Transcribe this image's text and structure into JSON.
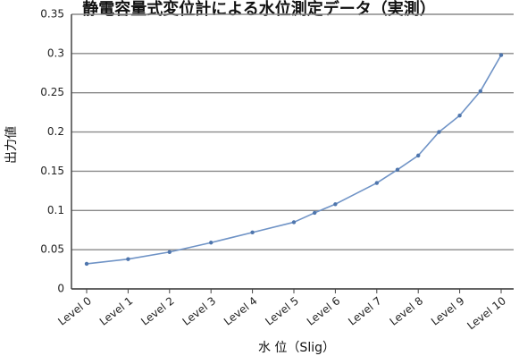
{
  "chart_data": {
    "type": "line",
    "title": "静電容量式変位計による水位測定データ（実測）",
    "xlabel": "水 位（Slig）",
    "ylabel": "出力値",
    "categories": [
      "Level 0",
      "Level 1",
      "Level 2",
      "Level 3",
      "Level 4",
      "Level 5",
      "Level 6",
      "Level 7",
      "Level 8",
      "Level 9",
      "Level 10"
    ],
    "series": [
      {
        "values": [
          0.032,
          0.038,
          0.047,
          0.059,
          0.072,
          0.085,
          0.108,
          0.135,
          0.17,
          0.221,
          0.298
        ],
        "intermediate": [
          {
            "x": 5.5,
            "y": 0.097
          },
          {
            "x": 7.5,
            "y": 0.152
          },
          {
            "x": 8.5,
            "y": 0.2
          },
          {
            "x": 9.5,
            "y": 0.252
          }
        ]
      }
    ],
    "ylim": [
      0,
      0.35
    ],
    "yticks": [
      "0",
      "0.05",
      "0.1",
      "0.15",
      "0.2",
      "0.25",
      "0.3",
      "0.35"
    ],
    "grid": true,
    "legend": "none",
    "colors": {
      "line": "#6f93c6",
      "marker": "#4f76ad",
      "grid": "#8a8a8a",
      "axis": "#444444"
    }
  }
}
